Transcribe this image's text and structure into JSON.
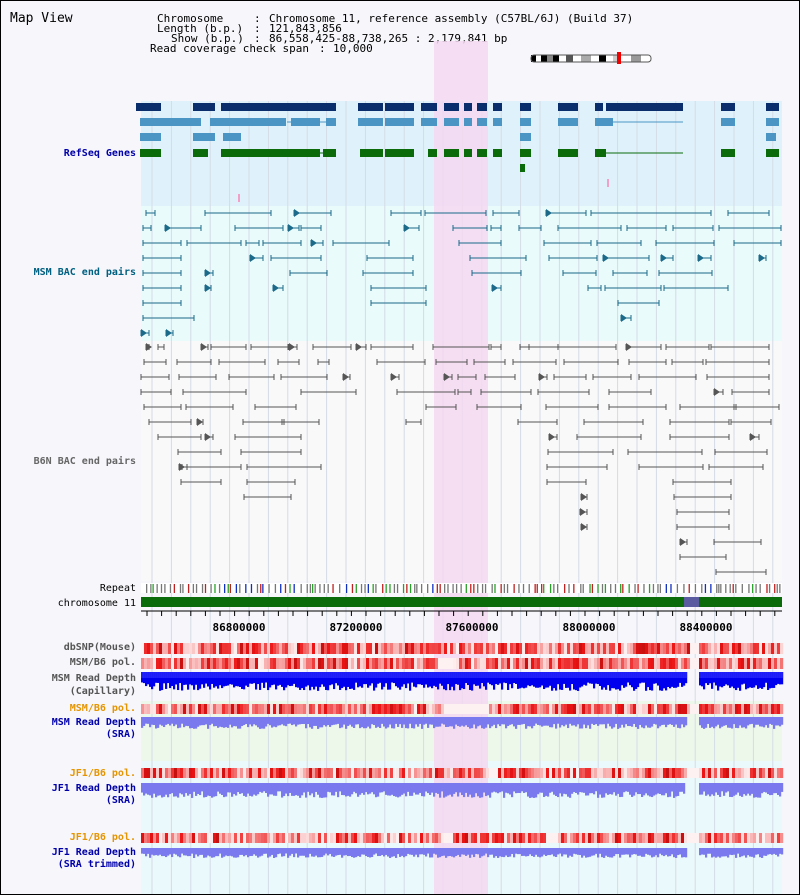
{
  "page": {
    "title": "Map View",
    "header": {
      "chromosome_key": "Chromosome",
      "chromosome_value": "Chromosome 11, reference assembly (C57BL/6J) (Build 37)",
      "length_key": "Length (b.p.)",
      "length_value": "121,843,856",
      "show_key": "Show (b.p.)",
      "show_value": "86,558,425-88,738,265 : 2,179,841 bp",
      "coverage_key": "Read coverage check span",
      "coverage_value": "10,000"
    },
    "colors": {
      "refseq_bg": "#dff2fb",
      "msm_bg": "#e9fbfb",
      "b6n_bg": "#f9f9f9",
      "highlight": "#f4d8f1",
      "refseq_dark": "#0a2e6b",
      "refseq_mid": "#4a95c4",
      "refseq_green": "#0b6b0b",
      "msm_bac": "#1b6a8a",
      "b6n_bac": "#555555",
      "chromosome_bar": "#0b6b0b",
      "read_depth_blue": "#0000ee",
      "sra_depth": "#7a7aee",
      "snp_red": "#e83030"
    }
  },
  "tracks": {
    "refseq": {
      "label": "RefSeq Genes",
      "color": "#0000aa"
    },
    "msm_bac": {
      "label": "MSM BAC end pairs",
      "color": "#006080"
    },
    "b6n_bac": {
      "label": "B6N BAC end pairs",
      "color": "#666666"
    },
    "repeat": {
      "label": "Repeat",
      "color": "#000000"
    },
    "chromosome": {
      "label": "chromosome 11",
      "color": "#000000"
    },
    "dbsnp": {
      "label": "dbSNP(Mouse)",
      "color": "#555555"
    },
    "msm_pol": {
      "label": "MSM/B6 pol.",
      "color": "#555555"
    },
    "msm_depth_cap_1": {
      "label": "MSM Read Depth",
      "color": "#555555"
    },
    "msm_depth_cap_2": {
      "label": "(Capillary)",
      "color": "#555555"
    },
    "msm_pol_sra": {
      "label": "MSM/B6 pol.",
      "color": "#e69500"
    },
    "msm_depth_sra_1": {
      "label": "MSM Read Depth",
      "color": "#0000aa"
    },
    "msm_depth_sra_2": {
      "label": "(SRA)",
      "color": "#0000aa"
    },
    "jf1_pol": {
      "label": "JF1/B6 pol.",
      "color": "#e69500"
    },
    "jf1_depth_1": {
      "label": "JF1 Read Depth",
      "color": "#0000aa"
    },
    "jf1_depth_2": {
      "label": "(SRA)",
      "color": "#0000aa"
    },
    "jf1_pol_trim": {
      "label": "JF1/B6 pol.",
      "color": "#e69500"
    },
    "jf1_trim_1": {
      "label": "JF1 Read Depth",
      "color": "#0000aa"
    },
    "jf1_trim_2": {
      "label": "(SRA trimmed)",
      "color": "#0000aa"
    }
  },
  "axis": {
    "ticks": [
      "86800000",
      "87200000",
      "87600000",
      "88000000",
      "88400000"
    ]
  }
}
